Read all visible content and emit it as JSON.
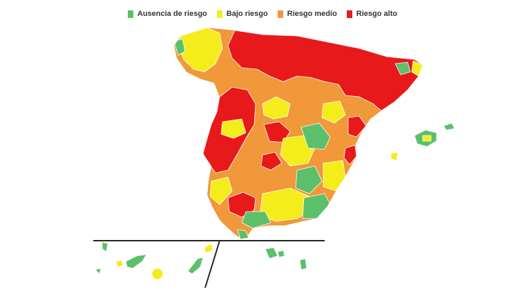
{
  "legend": [
    {
      "label": "Ausencia de riesgo",
      "color": "#5cbf6a"
    },
    {
      "label": "Bajo riesgo",
      "color": "#f5ec1c"
    },
    {
      "label": "Riesgo medio",
      "color": "#f0983a"
    },
    {
      "label": "Riesgo alto",
      "color": "#e8191b"
    }
  ]
}
